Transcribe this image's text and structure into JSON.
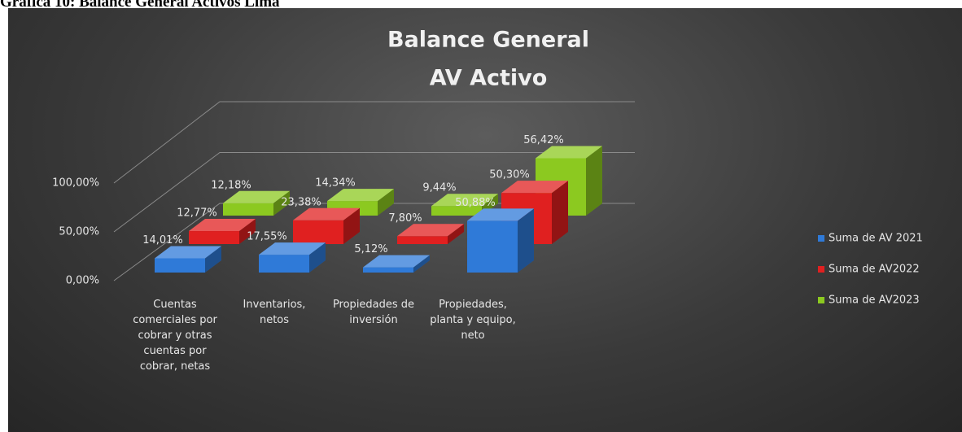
{
  "caption": "Gráfica 10: Balance General Activos Lima",
  "chart_data": {
    "type": "bar3d",
    "title": [
      "Balance  General",
      "AV Activo"
    ],
    "categories": [
      "Cuentas comerciales por cobrar y otras cuentas por cobrar, netas",
      "Inventarios, netos",
      "Propiedades de inversión",
      "Propiedades, planta y equipo, neto"
    ],
    "series": [
      {
        "name": "Suma de AV 2021",
        "color": "#2f7ad8",
        "values": [
          14.01,
          17.55,
          5.12,
          50.88
        ],
        "value_labels": [
          "14,01%",
          "17,55%",
          "5,12%",
          "50,88%"
        ]
      },
      {
        "name": "Suma de AV2022",
        "color": "#e02020",
        "values": [
          12.77,
          23.38,
          7.8,
          50.3
        ],
        "value_labels": [
          "12,77%",
          "23,38%",
          "7,80%",
          "50,30%"
        ]
      },
      {
        "name": "Suma de AV2023",
        "color": "#8cc920",
        "values": [
          12.18,
          14.34,
          9.44,
          56.42
        ],
        "value_labels": [
          "12,18%",
          "14,34%",
          "9,44%",
          "56,42%"
        ]
      }
    ],
    "ylim": [
      0,
      100
    ],
    "yticks": [
      {
        "value": 0,
        "label": "0,00%"
      },
      {
        "value": 50,
        "label": "50,00%"
      },
      {
        "value": 100,
        "label": "100,00%"
      }
    ],
    "grid": true,
    "legend": "right"
  }
}
